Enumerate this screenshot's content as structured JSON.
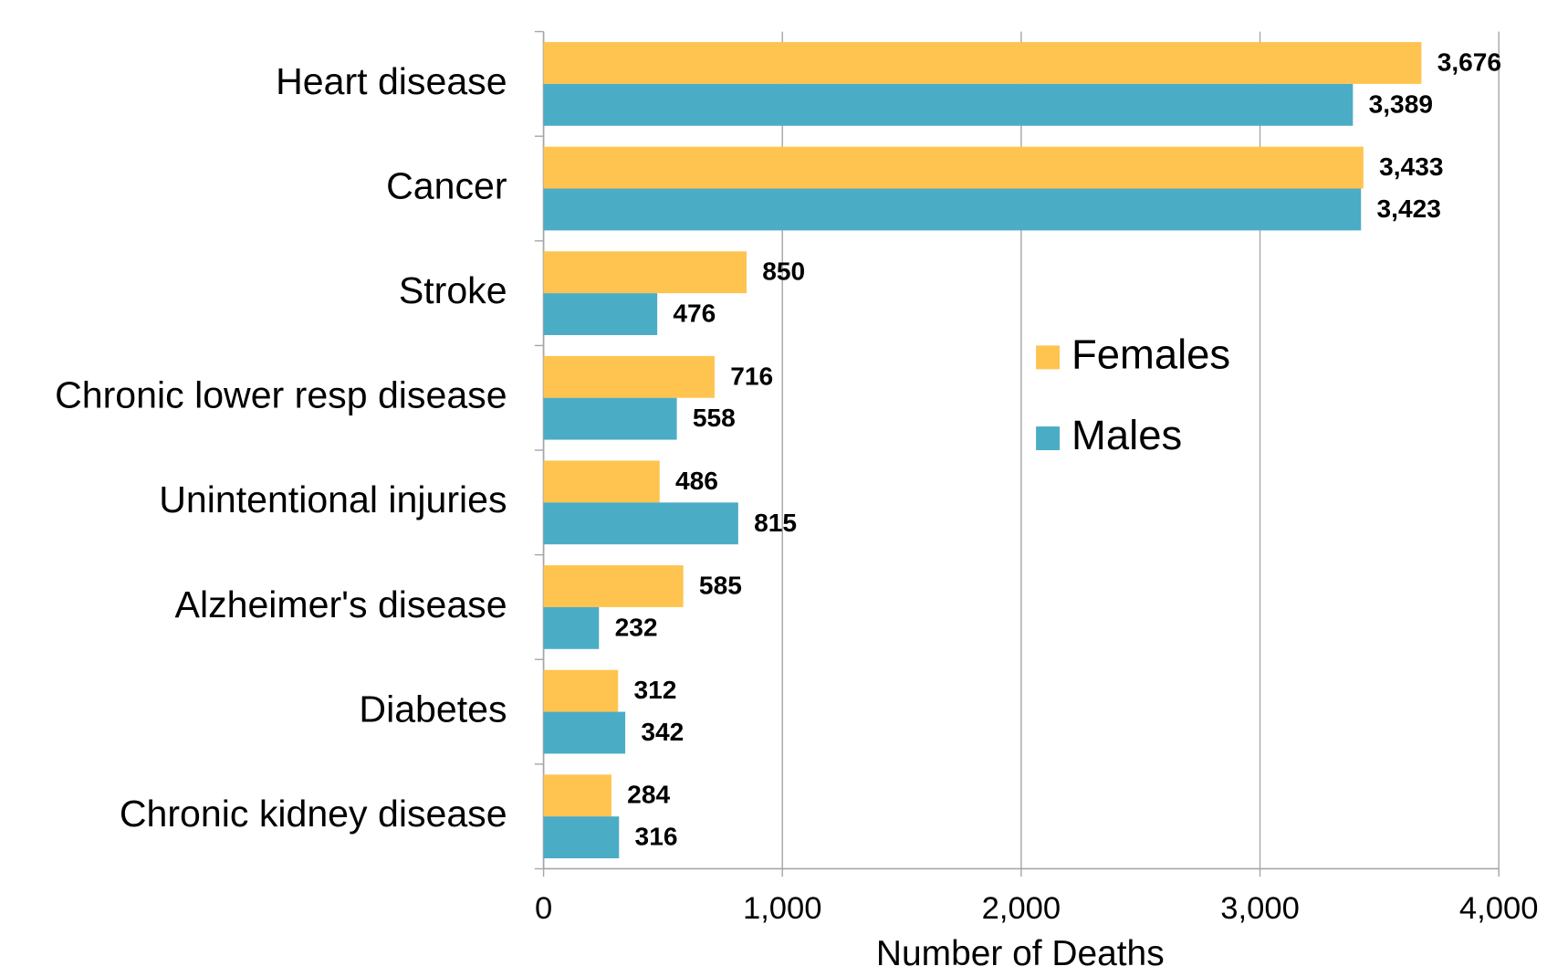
{
  "chart_data": {
    "type": "hbar",
    "x_label": "Number of Deaths",
    "categories": [
      "Heart disease",
      "Cancer",
      "Stroke",
      "Chronic lower resp disease",
      "Unintentional injuries",
      "Alzheimer's disease",
      "Diabetes",
      "Chronic kidney disease"
    ],
    "series": [
      {
        "name": "Females",
        "color": "#fec44f",
        "values": [
          3676,
          3433,
          850,
          716,
          486,
          585,
          312,
          284
        ],
        "value_labels": [
          "3,676",
          "3,433",
          "850",
          "716",
          "486",
          "585",
          "312",
          "284"
        ]
      },
      {
        "name": "Males",
        "color": "#4bacc6",
        "values": [
          3389,
          3423,
          476,
          558,
          815,
          232,
          342,
          316
        ],
        "value_labels": [
          "3,389",
          "3,423",
          "476",
          "558",
          "815",
          "232",
          "342",
          "316"
        ]
      }
    ],
    "xlim": [
      0,
      4000
    ],
    "xticks": [
      0,
      {
        "value": 1000,
        "label": "1,000"
      },
      {
        "value": 2000,
        "label": "2,000"
      },
      {
        "value": 3000,
        "label": "3,000"
      },
      {
        "value": 4000,
        "label": "4,000"
      }
    ],
    "grid": true,
    "legend": "right"
  }
}
